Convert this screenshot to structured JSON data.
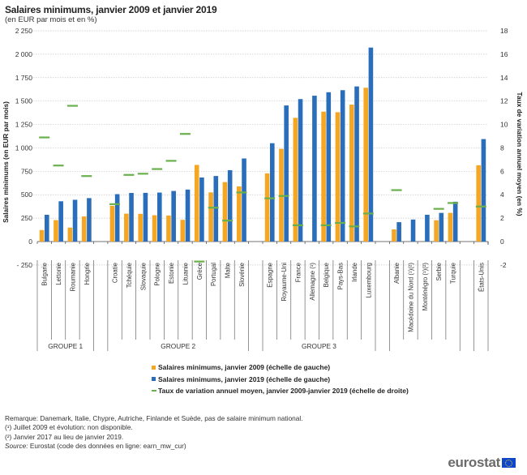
{
  "header": {
    "title": "Salaires minimums,  janvier 2009 et janvier 2019",
    "subtitle": "(en EUR par mois et en %)"
  },
  "chart_data": {
    "type": "bar",
    "title": "Salaires minimums, janvier 2009 et janvier 2019",
    "subtitle": "(en EUR par mois et en %)",
    "ylabel": "Salaires minimums (en EUR par mois)",
    "y2label": "Taux de variation annuel moyen (en %)",
    "ylim": [
      -250,
      2250
    ],
    "y2lim": [
      -2,
      18
    ],
    "yticks": [
      "- 250",
      "0",
      "250",
      "500",
      "750",
      "1 000",
      "1 250",
      "1 500",
      "1 750",
      "2 000",
      "2 250"
    ],
    "ytick_values": [
      -250,
      0,
      250,
      500,
      750,
      1000,
      1250,
      1500,
      1750,
      2000,
      2250
    ],
    "y2ticks": [
      "-2",
      "0",
      "2",
      "4",
      "6",
      "8",
      "10",
      "12",
      "14",
      "16",
      "18"
    ],
    "y2tick_values": [
      -2,
      0,
      2,
      4,
      6,
      8,
      10,
      12,
      14,
      16,
      18
    ],
    "grid": true,
    "groups": [
      {
        "label": "GROUPE 1",
        "categories": [
          "Bulgarie",
          "Lettonie",
          "Roumanie",
          "Hongrie"
        ]
      },
      {
        "label": "GROUPE 2",
        "categories": [
          "Croatie",
          "Tchéquie",
          "Slovaquie",
          "Pologne",
          "Estonie",
          "Lituanie",
          "Grèce",
          "Portugal",
          "Malte",
          "Slovénie"
        ]
      },
      {
        "label": "GROUPE 3",
        "categories": [
          "Espagne",
          "Royaume-Uni",
          "France",
          "Allemagne (¹)",
          "Belgique",
          "Pays-Bas",
          "Irlande",
          "Luxembourg"
        ]
      },
      {
        "label": "",
        "categories": [
          "Albanie",
          "Macédoine du Nord (¹)(²)",
          "Monténégro (¹)(²)",
          "Serbie",
          "Turquie"
        ]
      },
      {
        "label": "",
        "categories": [
          "États-Unis"
        ]
      }
    ],
    "categories": [
      "Bulgarie",
      "Lettonie",
      "Roumanie",
      "Hongrie",
      "Croatie",
      "Tchéquie",
      "Slovaquie",
      "Pologne",
      "Estonie",
      "Lituanie",
      "Grèce",
      "Portugal",
      "Malte",
      "Slovénie",
      "Espagne",
      "Royaume-Uni",
      "France",
      "Allemagne (¹)",
      "Belgique",
      "Pays-Bas",
      "Irlande",
      "Luxembourg",
      "Albanie",
      "Macédoine du Nord (¹)(²)",
      "Monténégro (¹)(²)",
      "Serbie",
      "Turquie",
      "États-Unis"
    ],
    "series": [
      {
        "name": "Salaires minimums, janvier 2009 (échelle de gauche)",
        "type": "bar",
        "axis": "left",
        "color": "#f5a623",
        "values": [
          123,
          229,
          149,
          268,
          381,
          298,
          296,
          281,
          278,
          232,
          818,
          525,
          635,
          589,
          728,
          990,
          1321,
          null,
          1387,
          1381,
          1462,
          1642,
          130,
          null,
          null,
          228,
          306,
          815
        ]
      },
      {
        "name": "Salaires minimums, janvier 2019  (échelle de gauche)",
        "type": "bar",
        "axis": "left",
        "color": "#2a6ebb",
        "values": [
          286,
          430,
          446,
          464,
          506,
          519,
          520,
          523,
          540,
          555,
          684,
          700,
          762,
          887,
          1050,
          1453,
          1521,
          1557,
          1594,
          1616,
          1656,
          2071,
          207,
          235,
          286,
          306,
          425,
          1094
        ]
      },
      {
        "name": "Taux de variation annuel moyen, janvier 2009-janvier 2019 (échelle de droite)",
        "type": "marker",
        "axis": "right",
        "color": "#6ab04c",
        "values": [
          8.9,
          6.5,
          11.6,
          5.6,
          3.2,
          5.7,
          5.8,
          6.2,
          6.9,
          9.2,
          -1.7,
          2.9,
          1.8,
          4.2,
          3.7,
          3.9,
          1.4,
          null,
          1.4,
          1.6,
          1.3,
          2.4,
          4.4,
          null,
          null,
          2.8,
          3.3,
          3.0
        ]
      }
    ],
    "legend_position": "bottom"
  },
  "legend": {
    "items": [
      {
        "label": "Salaires minimums, janvier 2009 (échelle de gauche)",
        "color": "#f5a623"
      },
      {
        "label": "Salaires minimums, janvier 2019  (échelle de gauche)",
        "color": "#2a6ebb"
      },
      {
        "label": "Taux de variation annuel moyen, janvier 2009-janvier 2019 (échelle de droite)",
        "color": "#6ab04c"
      }
    ]
  },
  "notes": {
    "remark": "Remarque: Danemark, Italie, Chypre, Autriche, Finlande et Suède, pas de salaire minimum national.",
    "note1": "(¹) Juillet 2009 et évolution: non disponible.",
    "note2": "(²) Janvier 2017 au lieu de janvier 2019.",
    "source_label": "Source:",
    "source_text": " Eurostat (code des données en ligne: earn_mw_cur)"
  },
  "logo": {
    "text": "eurostat",
    "icon": "eu-flag-icon"
  }
}
